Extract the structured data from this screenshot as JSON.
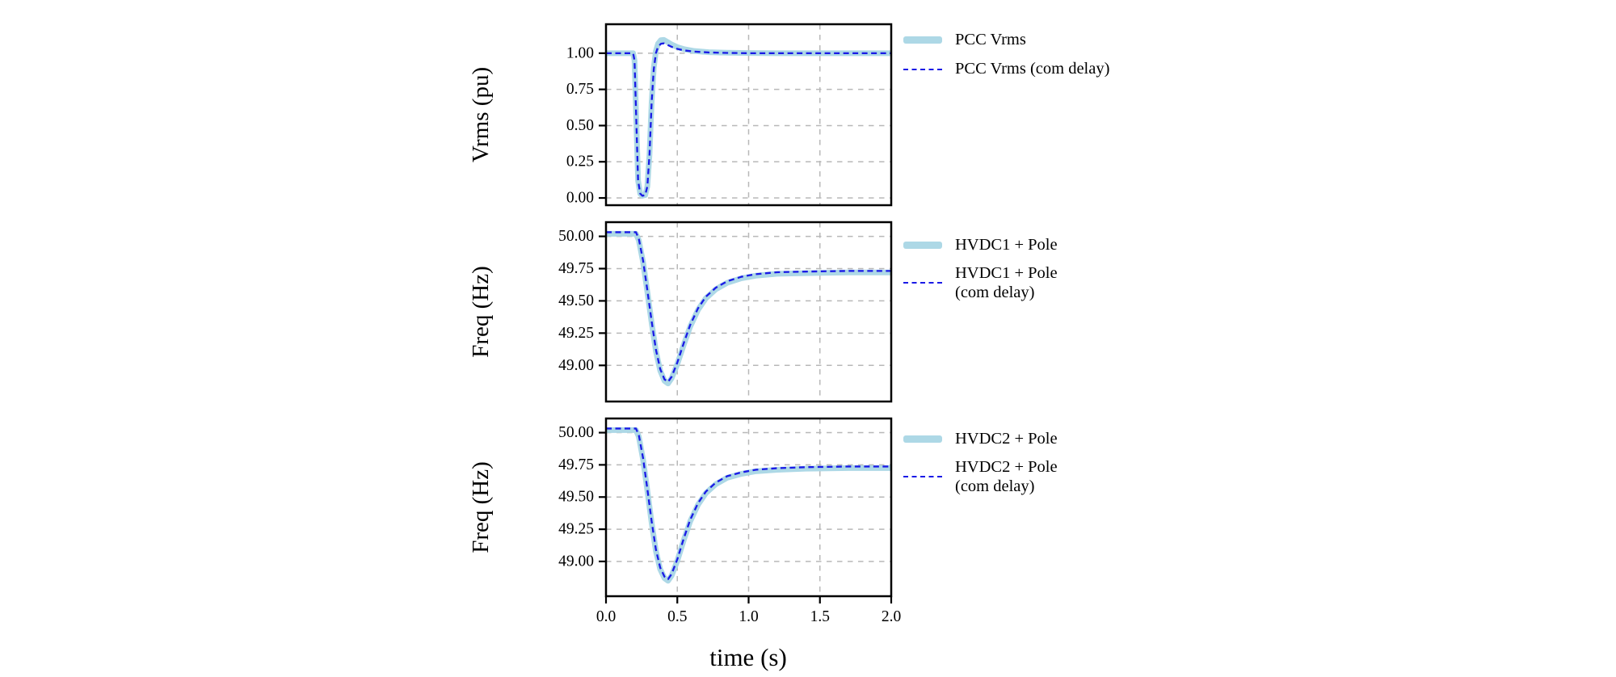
{
  "figure": {
    "xlabel": "time (s)",
    "background": "#ffffff"
  },
  "colors": {
    "band": "#add8e6",
    "dashed": "#1a1ae6",
    "grid": "#b8b8b8",
    "frame": "#000000",
    "text": "#000000"
  },
  "chart_data": [
    {
      "type": "line",
      "ylabel": "Vrms (pu)",
      "xlim": [
        0,
        2
      ],
      "ylim": [
        -0.05,
        1.2
      ],
      "xticks": {
        "values": [
          0,
          0.5,
          1.0,
          1.5,
          2.0
        ],
        "labels": [
          "0.0",
          "0.5",
          "1.0",
          "1.5",
          "2.0"
        ]
      },
      "yticks": {
        "values": [
          1.0,
          0.75,
          0.5,
          0.25,
          0.0
        ],
        "labels": [
          "1.00",
          "0.75",
          "0.50",
          "0.25",
          "0.00"
        ]
      },
      "show_xtick_labels": false,
      "legend": [
        {
          "label": "PCC Vrms",
          "style": "band"
        },
        {
          "label": "PCC Vrms (com delay)",
          "style": "dashed"
        }
      ],
      "series": [
        {
          "name": "PCC Vrms",
          "style": "band",
          "points": [
            [
              0,
              1.0
            ],
            [
              0.19,
              1.0
            ],
            [
              0.2,
              0.95
            ],
            [
              0.215,
              0.45
            ],
            [
              0.225,
              0.12
            ],
            [
              0.24,
              0.03
            ],
            [
              0.255,
              0.015
            ],
            [
              0.275,
              0.02
            ],
            [
              0.29,
              0.08
            ],
            [
              0.305,
              0.3
            ],
            [
              0.32,
              0.66
            ],
            [
              0.335,
              0.9
            ],
            [
              0.35,
              1.015
            ],
            [
              0.365,
              1.065
            ],
            [
              0.385,
              1.09
            ],
            [
              0.405,
              1.092
            ],
            [
              0.43,
              1.078
            ],
            [
              0.46,
              1.06
            ],
            [
              0.5,
              1.042
            ],
            [
              0.55,
              1.027
            ],
            [
              0.62,
              1.015
            ],
            [
              0.72,
              1.007
            ],
            [
              0.85,
              1.003
            ],
            [
              1.0,
              1.001
            ],
            [
              1.2,
              1.0
            ],
            [
              1.5,
              1.0
            ],
            [
              2.0,
              1.0
            ]
          ]
        },
        {
          "name": "PCC Vrms (com delay)",
          "style": "dashed",
          "points": [
            [
              0,
              1.0
            ],
            [
              0.19,
              1.0
            ],
            [
              0.2,
              0.95
            ],
            [
              0.215,
              0.45
            ],
            [
              0.225,
              0.12
            ],
            [
              0.24,
              0.03
            ],
            [
              0.255,
              0.015
            ],
            [
              0.275,
              0.02
            ],
            [
              0.29,
              0.08
            ],
            [
              0.305,
              0.3
            ],
            [
              0.32,
              0.66
            ],
            [
              0.335,
              0.89
            ],
            [
              0.35,
              1.0
            ],
            [
              0.365,
              1.045
            ],
            [
              0.385,
              1.065
            ],
            [
              0.405,
              1.068
            ],
            [
              0.43,
              1.058
            ],
            [
              0.46,
              1.044
            ],
            [
              0.5,
              1.03
            ],
            [
              0.55,
              1.019
            ],
            [
              0.62,
              1.011
            ],
            [
              0.72,
              1.005
            ],
            [
              0.85,
              1.002
            ],
            [
              1.0,
              1.0
            ],
            [
              1.2,
              1.0
            ],
            [
              1.5,
              1.0
            ],
            [
              2.0,
              1.0
            ]
          ]
        }
      ]
    },
    {
      "type": "line",
      "ylabel": "Freq (Hz)",
      "xlim": [
        0,
        2
      ],
      "ylim": [
        48.72,
        50.11
      ],
      "xticks": {
        "values": [
          0,
          0.5,
          1.0,
          1.5,
          2.0
        ],
        "labels": [
          "0.0",
          "0.5",
          "1.0",
          "1.5",
          "2.0"
        ]
      },
      "yticks": {
        "values": [
          50.0,
          49.75,
          49.5,
          49.25,
          49.0
        ],
        "labels": [
          "50.00",
          "49.75",
          "49.50",
          "49.25",
          "49.00"
        ]
      },
      "show_xtick_labels": false,
      "legend": [
        {
          "label": "HVDC1 + Pole",
          "style": "band"
        },
        {
          "label": "HVDC1 + Pole\n(com delay)",
          "style": "dashed"
        }
      ],
      "series": [
        {
          "name": "HVDC1 + Pole",
          "style": "band",
          "points": [
            [
              0,
              50.02
            ],
            [
              0.21,
              50.02
            ],
            [
              0.23,
              49.97
            ],
            [
              0.26,
              49.8
            ],
            [
              0.29,
              49.57
            ],
            [
              0.32,
              49.33
            ],
            [
              0.35,
              49.11
            ],
            [
              0.38,
              48.96
            ],
            [
              0.41,
              48.88
            ],
            [
              0.435,
              48.86
            ],
            [
              0.46,
              48.9
            ],
            [
              0.5,
              49.01
            ],
            [
              0.545,
              49.16
            ],
            [
              0.59,
              49.3
            ],
            [
              0.645,
              49.43
            ],
            [
              0.7,
              49.52
            ],
            [
              0.77,
              49.59
            ],
            [
              0.85,
              49.64
            ],
            [
              0.95,
              49.675
            ],
            [
              1.05,
              49.695
            ],
            [
              1.2,
              49.71
            ],
            [
              1.4,
              49.715
            ],
            [
              1.7,
              49.72
            ],
            [
              2.0,
              49.72
            ]
          ]
        },
        {
          "name": "HVDC1 + Pole (com delay)",
          "style": "dashed",
          "points": [
            [
              0,
              50.032
            ],
            [
              0.21,
              50.032
            ],
            [
              0.23,
              49.982
            ],
            [
              0.26,
              49.812
            ],
            [
              0.29,
              49.582
            ],
            [
              0.32,
              49.342
            ],
            [
              0.35,
              49.122
            ],
            [
              0.38,
              48.972
            ],
            [
              0.41,
              48.892
            ],
            [
              0.435,
              48.872
            ],
            [
              0.46,
              48.912
            ],
            [
              0.5,
              49.022
            ],
            [
              0.545,
              49.172
            ],
            [
              0.59,
              49.312
            ],
            [
              0.645,
              49.442
            ],
            [
              0.7,
              49.532
            ],
            [
              0.77,
              49.602
            ],
            [
              0.85,
              49.652
            ],
            [
              0.95,
              49.687
            ],
            [
              1.05,
              49.707
            ],
            [
              1.2,
              49.722
            ],
            [
              1.4,
              49.727
            ],
            [
              1.7,
              49.732
            ],
            [
              2.0,
              49.732
            ]
          ]
        }
      ]
    },
    {
      "type": "line",
      "ylabel": "Freq (Hz)",
      "xlim": [
        0,
        2
      ],
      "ylim": [
        48.73,
        50.11
      ],
      "xticks": {
        "values": [
          0,
          0.5,
          1.0,
          1.5,
          2.0
        ],
        "labels": [
          "0.0",
          "0.5",
          "1.0",
          "1.5",
          "2.0"
        ]
      },
      "yticks": {
        "values": [
          50.0,
          49.75,
          49.5,
          49.25,
          49.0
        ],
        "labels": [
          "50.00",
          "49.75",
          "49.50",
          "49.25",
          "49.00"
        ]
      },
      "show_xtick_labels": true,
      "legend": [
        {
          "label": "HVDC2 + Pole",
          "style": "band"
        },
        {
          "label": "HVDC2 + Pole\n(com delay)",
          "style": "dashed"
        }
      ],
      "series": [
        {
          "name": "HVDC2 + Pole",
          "style": "band",
          "points": [
            [
              0,
              50.02
            ],
            [
              0.21,
              50.02
            ],
            [
              0.23,
              49.97
            ],
            [
              0.26,
              49.79
            ],
            [
              0.29,
              49.55
            ],
            [
              0.32,
              49.3
            ],
            [
              0.35,
              49.08
            ],
            [
              0.38,
              48.94
            ],
            [
              0.41,
              48.87
            ],
            [
              0.435,
              48.85
            ],
            [
              0.46,
              48.89
            ],
            [
              0.5,
              49.005
            ],
            [
              0.545,
              49.165
            ],
            [
              0.59,
              49.31
            ],
            [
              0.645,
              49.44
            ],
            [
              0.7,
              49.53
            ],
            [
              0.77,
              49.6
            ],
            [
              0.85,
              49.65
            ],
            [
              0.95,
              49.68
            ],
            [
              1.05,
              49.7
            ],
            [
              1.2,
              49.712
            ],
            [
              1.4,
              49.72
            ],
            [
              1.7,
              49.725
            ],
            [
              2.0,
              49.725
            ]
          ]
        },
        {
          "name": "HVDC2 + Pole (com delay)",
          "style": "dashed",
          "points": [
            [
              0,
              50.032
            ],
            [
              0.21,
              50.032
            ],
            [
              0.23,
              49.982
            ],
            [
              0.26,
              49.802
            ],
            [
              0.29,
              49.562
            ],
            [
              0.32,
              49.312
            ],
            [
              0.35,
              49.092
            ],
            [
              0.38,
              48.952
            ],
            [
              0.41,
              48.882
            ],
            [
              0.435,
              48.862
            ],
            [
              0.46,
              48.902
            ],
            [
              0.5,
              49.017
            ],
            [
              0.545,
              49.177
            ],
            [
              0.59,
              49.322
            ],
            [
              0.645,
              49.452
            ],
            [
              0.7,
              49.542
            ],
            [
              0.77,
              49.612
            ],
            [
              0.85,
              49.662
            ],
            [
              0.95,
              49.692
            ],
            [
              1.05,
              49.712
            ],
            [
              1.2,
              49.724
            ],
            [
              1.4,
              49.732
            ],
            [
              1.7,
              49.737
            ],
            [
              2.0,
              49.737
            ]
          ]
        }
      ]
    }
  ]
}
